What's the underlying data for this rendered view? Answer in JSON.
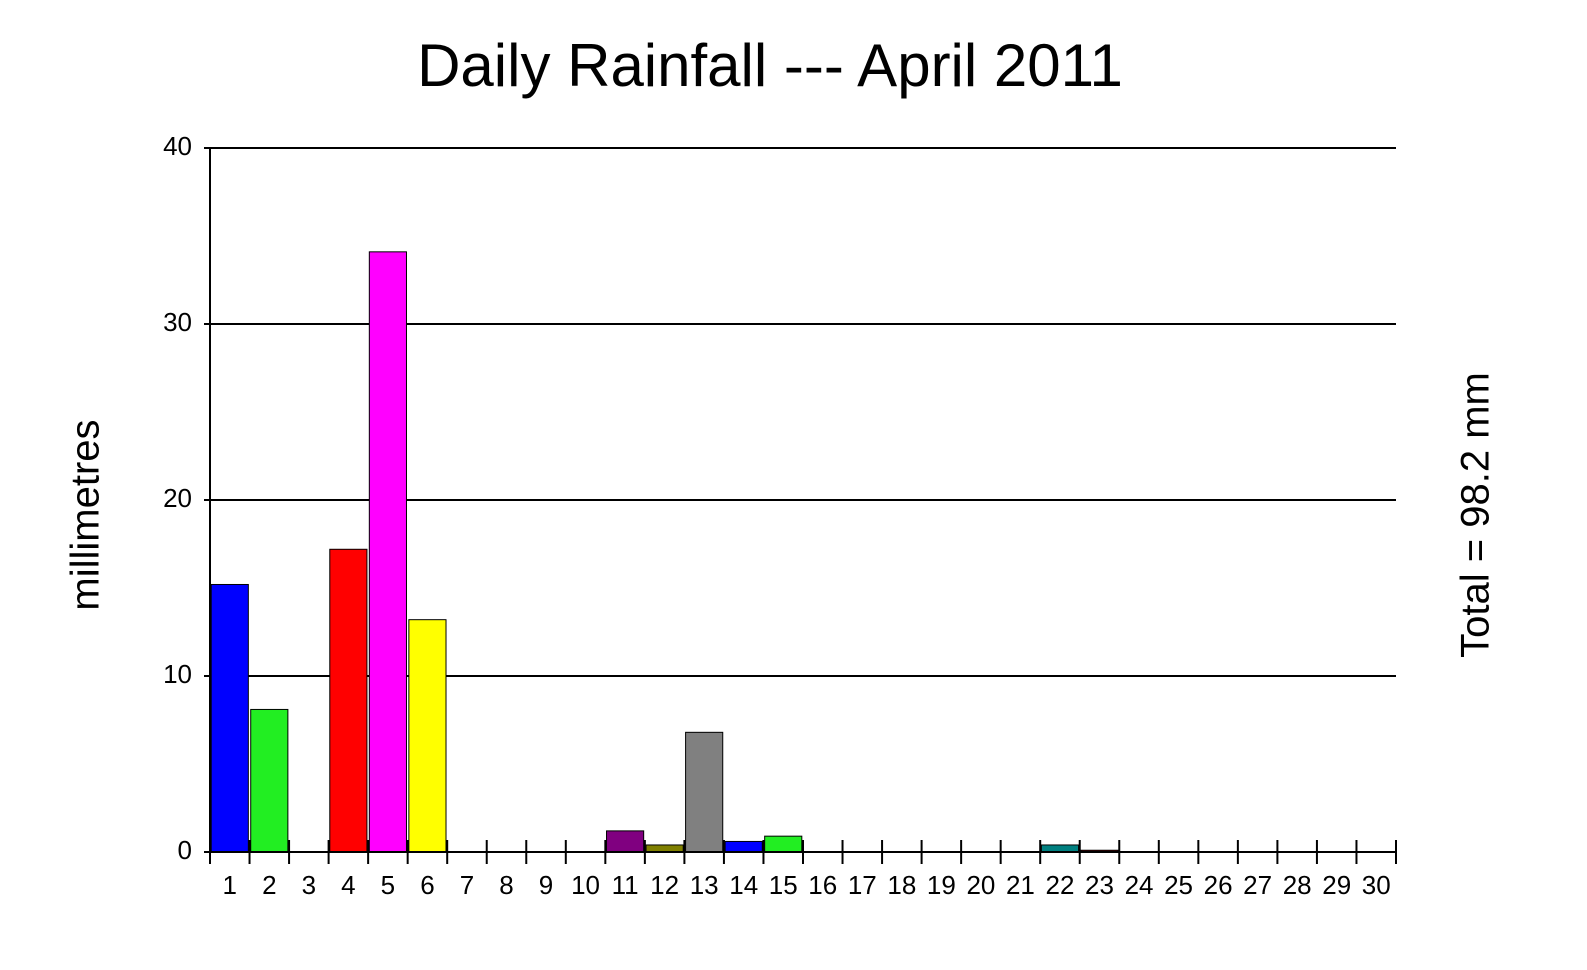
{
  "chart_data": {
    "type": "bar",
    "title": "Daily Rainfall --- April 2011",
    "y_label": "millimetres",
    "annotation": "Total = 98.2 mm",
    "categories": [
      "1",
      "2",
      "3",
      "4",
      "5",
      "6",
      "7",
      "8",
      "9",
      "10",
      "11",
      "12",
      "13",
      "14",
      "15",
      "16",
      "17",
      "18",
      "19",
      "20",
      "21",
      "22",
      "23",
      "24",
      "25",
      "26",
      "27",
      "28",
      "29",
      "30"
    ],
    "values": [
      15.2,
      8.1,
      0,
      17.2,
      34.1,
      13.2,
      0,
      0,
      0,
      0,
      1.2,
      0.4,
      6.8,
      0.6,
      0.9,
      0,
      0,
      0,
      0,
      0,
      0,
      0.4,
      0.1,
      0,
      0,
      0,
      0,
      0,
      0,
      0
    ],
    "colors": [
      "#0000ff",
      "#22ee22",
      null,
      "#ff0000",
      "#ff00ff",
      "#ffff00",
      null,
      null,
      null,
      null,
      "#800080",
      "#808000",
      "#808080",
      "#0000ff",
      "#22ee22",
      null,
      null,
      null,
      null,
      null,
      null,
      "#008080",
      "#800000",
      null,
      null,
      null,
      null,
      null,
      null,
      null
    ],
    "ylim": [
      0,
      40
    ],
    "yticks": [
      0,
      10,
      20,
      30,
      40
    ],
    "grid": true
  }
}
